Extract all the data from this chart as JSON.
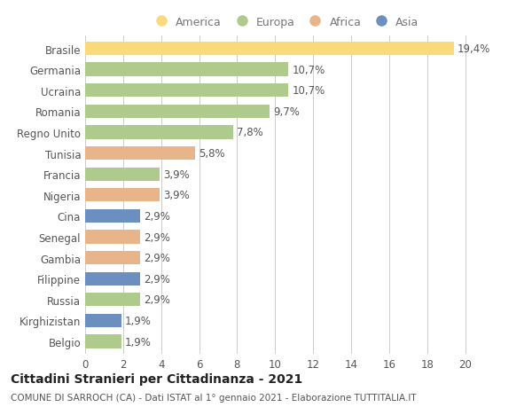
{
  "countries": [
    "Brasile",
    "Germania",
    "Ucraina",
    "Romania",
    "Regno Unito",
    "Tunisia",
    "Francia",
    "Nigeria",
    "Cina",
    "Senegal",
    "Gambia",
    "Filippine",
    "Russia",
    "Kirghizistan",
    "Belgio"
  ],
  "values": [
    19.4,
    10.7,
    10.7,
    9.7,
    7.8,
    5.8,
    3.9,
    3.9,
    2.9,
    2.9,
    2.9,
    2.9,
    2.9,
    1.9,
    1.9
  ],
  "labels": [
    "19,4%",
    "10,7%",
    "10,7%",
    "9,7%",
    "7,8%",
    "5,8%",
    "3,9%",
    "3,9%",
    "2,9%",
    "2,9%",
    "2,9%",
    "2,9%",
    "2,9%",
    "1,9%",
    "1,9%"
  ],
  "continents": [
    "America",
    "Europa",
    "Europa",
    "Europa",
    "Europa",
    "Africa",
    "Europa",
    "Africa",
    "Asia",
    "Africa",
    "Africa",
    "Asia",
    "Europa",
    "Asia",
    "Europa"
  ],
  "colors": {
    "America": "#FADA7A",
    "Europa": "#AECA8C",
    "Africa": "#E8B48A",
    "Asia": "#6B8FBF"
  },
  "xlim": [
    0,
    21
  ],
  "xticks": [
    0,
    2,
    4,
    6,
    8,
    10,
    12,
    14,
    16,
    18,
    20
  ],
  "title": "Cittadini Stranieri per Cittadinanza - 2021",
  "subtitle": "COMUNE DI SARROCH (CA) - Dati ISTAT al 1° gennaio 2021 - Elaborazione TUTTITALIA.IT",
  "bg_color": "#FFFFFF",
  "grid_color": "#CCCCCC",
  "bar_height": 0.65,
  "label_fontsize": 8.5,
  "tick_fontsize": 8.5,
  "title_fontsize": 10,
  "subtitle_fontsize": 7.5,
  "legend_order": [
    "America",
    "Europa",
    "Africa",
    "Asia"
  ]
}
